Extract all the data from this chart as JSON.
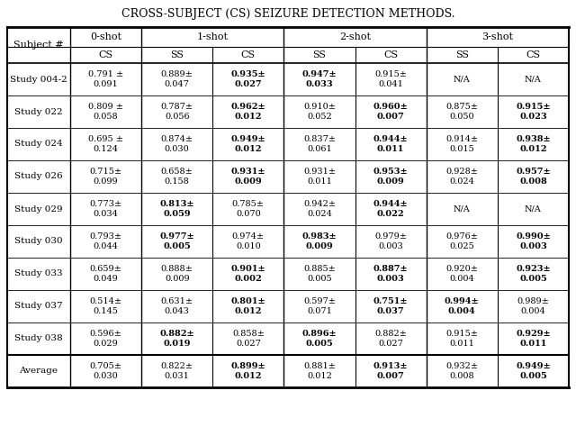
{
  "title": "CROSS-SUBJECT (CS) SEIZURE DETECTION METHODS.",
  "col_groups": [
    {
      "label": "0-shot",
      "cols": [
        1,
        1
      ]
    },
    {
      "label": "1-shot",
      "cols": [
        2,
        3
      ]
    },
    {
      "label": "2-shot",
      "cols": [
        4,
        5
      ]
    },
    {
      "label": "3-shot",
      "cols": [
        6,
        7
      ]
    }
  ],
  "sub_headers": [
    "CS",
    "SS",
    "CS",
    "SS",
    "CS",
    "SS",
    "CS"
  ],
  "row_labels": [
    "Study 004-2",
    "Study 022",
    "Study 024",
    "Study 026",
    "Study 029",
    "Study 030",
    "Study 033",
    "Study 037",
    "Study 038",
    "Average"
  ],
  "cells": [
    [
      {
        "val": "0.791 ±\n0.091",
        "bold": false
      },
      {
        "val": "0.889±\n0.047",
        "bold": false
      },
      {
        "val": "0.935±\n0.027",
        "bold": true
      },
      {
        "val": "0.947±\n0.033",
        "bold": true
      },
      {
        "val": "0.915±\n0.041",
        "bold": false
      },
      {
        "val": "N/A",
        "bold": false
      },
      {
        "val": "N/A",
        "bold": false
      }
    ],
    [
      {
        "val": "0.809 ±\n0.058",
        "bold": false
      },
      {
        "val": "0.787±\n0.056",
        "bold": false
      },
      {
        "val": "0.962±\n0.012",
        "bold": true
      },
      {
        "val": "0.910±\n0.052",
        "bold": false
      },
      {
        "val": "0.960±\n0.007",
        "bold": true
      },
      {
        "val": "0.875±\n0.050",
        "bold": false
      },
      {
        "val": "0.915±\n0.023",
        "bold": true
      }
    ],
    [
      {
        "val": "0.695 ±\n0.124",
        "bold": false
      },
      {
        "val": "0.874±\n0.030",
        "bold": false
      },
      {
        "val": "0.949±\n0.012",
        "bold": true
      },
      {
        "val": "0.837±\n0.061",
        "bold": false
      },
      {
        "val": "0.944±\n0.011",
        "bold": true
      },
      {
        "val": "0.914±\n0.015",
        "bold": false
      },
      {
        "val": "0.938±\n0.012",
        "bold": true
      }
    ],
    [
      {
        "val": "0.715±\n0.099",
        "bold": false
      },
      {
        "val": "0.658±\n0.158",
        "bold": false
      },
      {
        "val": "0.931±\n0.009",
        "bold": true
      },
      {
        "val": "0.931±\n0.011",
        "bold": false
      },
      {
        "val": "0.953±\n0.009",
        "bold": true
      },
      {
        "val": "0.928±\n0.024",
        "bold": false
      },
      {
        "val": "0.957±\n0.008",
        "bold": true
      }
    ],
    [
      {
        "val": "0.773±\n0.034",
        "bold": false
      },
      {
        "val": "0.813±\n0.059",
        "bold": true
      },
      {
        "val": "0.785±\n0.070",
        "bold": false
      },
      {
        "val": "0.942±\n0.024",
        "bold": false
      },
      {
        "val": "0.944±\n0.022",
        "bold": true
      },
      {
        "val": "N/A",
        "bold": false
      },
      {
        "val": "N/A",
        "bold": false
      }
    ],
    [
      {
        "val": "0.793±\n0.044",
        "bold": false
      },
      {
        "val": "0.977±\n0.005",
        "bold": true
      },
      {
        "val": "0.974±\n0.010",
        "bold": false
      },
      {
        "val": "0.983±\n0.009",
        "bold": true
      },
      {
        "val": "0.979±\n0.003",
        "bold": false
      },
      {
        "val": "0.976±\n0.025",
        "bold": false
      },
      {
        "val": "0.990±\n0.003",
        "bold": true
      }
    ],
    [
      {
        "val": "0.659±\n0.049",
        "bold": false
      },
      {
        "val": "0.888±\n0.009",
        "bold": false
      },
      {
        "val": "0.901±\n0.002",
        "bold": true
      },
      {
        "val": "0.885±\n0.005",
        "bold": false
      },
      {
        "val": "0.887±\n0.003",
        "bold": true
      },
      {
        "val": "0.920±\n0.004",
        "bold": false
      },
      {
        "val": "0.923±\n0.005",
        "bold": true
      }
    ],
    [
      {
        "val": "0.514±\n0.145",
        "bold": false
      },
      {
        "val": "0.631±\n0.043",
        "bold": false
      },
      {
        "val": "0.801±\n0.012",
        "bold": true
      },
      {
        "val": "0.597±\n0.071",
        "bold": false
      },
      {
        "val": "0.751±\n0.037",
        "bold": true
      },
      {
        "val": "0.994±\n0.004",
        "bold": true
      },
      {
        "val": "0.989±\n0.004",
        "bold": false
      }
    ],
    [
      {
        "val": "0.596±\n0.029",
        "bold": false
      },
      {
        "val": "0.882±\n0.019",
        "bold": true
      },
      {
        "val": "0.858±\n0.027",
        "bold": false
      },
      {
        "val": "0.896±\n0.005",
        "bold": true
      },
      {
        "val": "0.882±\n0.027",
        "bold": false
      },
      {
        "val": "0.915±\n0.011",
        "bold": false
      },
      {
        "val": "0.929±\n0.011",
        "bold": true
      }
    ],
    [
      {
        "val": "0.705±\n0.030",
        "bold": false
      },
      {
        "val": "0.822±\n0.031",
        "bold": false
      },
      {
        "val": "0.899±\n0.012",
        "bold": true
      },
      {
        "val": "0.881±\n0.012",
        "bold": false
      },
      {
        "val": "0.913±\n0.007",
        "bold": true
      },
      {
        "val": "0.932±\n0.008",
        "bold": false
      },
      {
        "val": "0.949±\n0.005",
        "bold": true
      }
    ]
  ],
  "bg_color": "#ffffff",
  "text_color": "#000000",
  "title_fontsize": 9,
  "header_fontsize": 8,
  "cell_fontsize": 7,
  "row_label_fontsize": 7.5
}
